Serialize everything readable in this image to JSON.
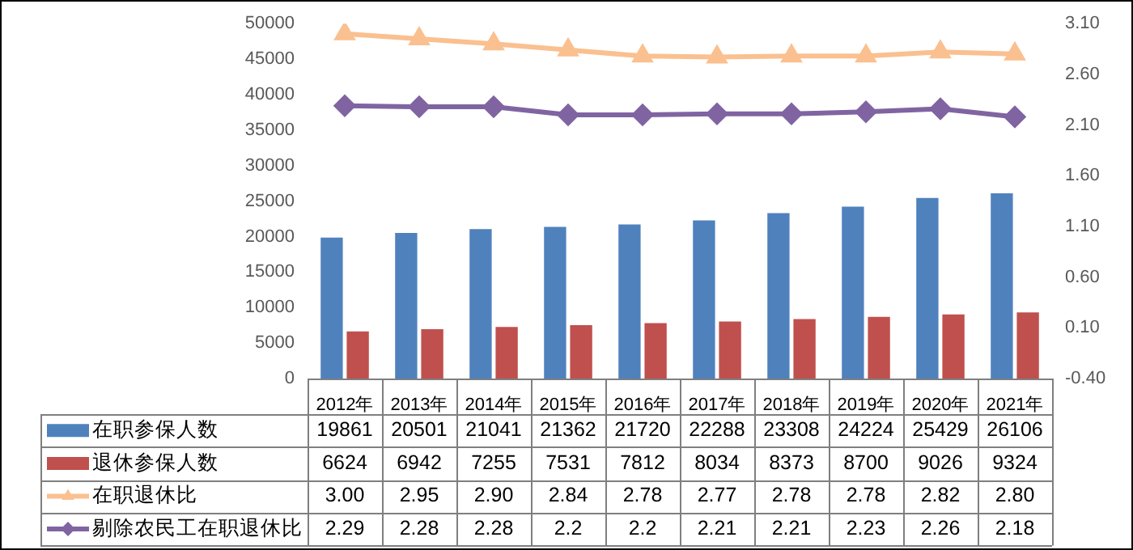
{
  "chart_data": {
    "type": "bar",
    "categories": [
      "2012年",
      "2013年",
      "2014年",
      "2015年",
      "2016年",
      "2017年",
      "2018年",
      "2019年",
      "2020年",
      "2021年"
    ],
    "series": [
      {
        "name": "在职参保人数",
        "color": "#4f81bd",
        "values": [
          19861,
          20501,
          21041,
          21362,
          21720,
          22288,
          23308,
          24224,
          25429,
          26106
        ],
        "value_labels": [
          "19861",
          "20501",
          "21041",
          "21362",
          "21720",
          "22288",
          "23308",
          "24224",
          "25429",
          "26106"
        ]
      },
      {
        "name": "退休参保人数",
        "color": "#c0504d",
        "values": [
          6624,
          6942,
          7255,
          7531,
          7812,
          8034,
          8373,
          8700,
          9026,
          9324
        ],
        "value_labels": [
          "6624",
          "6942",
          "7255",
          "7531",
          "7812",
          "8034",
          "8373",
          "8700",
          "9026",
          "9324"
        ]
      },
      {
        "name": "在职退休比",
        "type": "line",
        "axis": "y2",
        "color": "#fac090",
        "marker": "triangle",
        "values": [
          3.0,
          2.95,
          2.9,
          2.84,
          2.78,
          2.77,
          2.78,
          2.78,
          2.82,
          2.8
        ],
        "value_labels": [
          "3.00",
          "2.95",
          "2.90",
          "2.84",
          "2.78",
          "2.77",
          "2.78",
          "2.78",
          "2.82",
          "2.80"
        ]
      },
      {
        "name": "剔除农民工在职退休比",
        "type": "line",
        "axis": "y2",
        "color": "#8064a2",
        "marker": "diamond",
        "values": [
          2.29,
          2.28,
          2.28,
          2.2,
          2.2,
          2.21,
          2.21,
          2.23,
          2.26,
          2.18
        ],
        "value_labels": [
          "2.29",
          "2.28",
          "2.28",
          "2.2",
          "2.2",
          "2.21",
          "2.21",
          "2.23",
          "2.26",
          "2.18"
        ]
      }
    ],
    "ylim": [
      0,
      50000
    ],
    "yticks": [
      0,
      5000,
      10000,
      15000,
      20000,
      25000,
      30000,
      35000,
      40000,
      45000,
      50000
    ],
    "y2lim": [
      -0.4,
      3.1
    ],
    "y2ticks": [
      {
        "value": -0.4,
        "label": "-0.40"
      },
      {
        "value": 0.1,
        "label": "0.10"
      },
      {
        "value": 0.6,
        "label": "0.60"
      },
      {
        "value": 1.1,
        "label": "1.10"
      },
      {
        "value": 1.6,
        "label": "1.60"
      },
      {
        "value": 2.1,
        "label": "2.10"
      },
      {
        "value": 2.6,
        "label": "2.60"
      },
      {
        "value": 3.1,
        "label": "3.10"
      }
    ],
    "legend": "bottom",
    "grid": false
  }
}
